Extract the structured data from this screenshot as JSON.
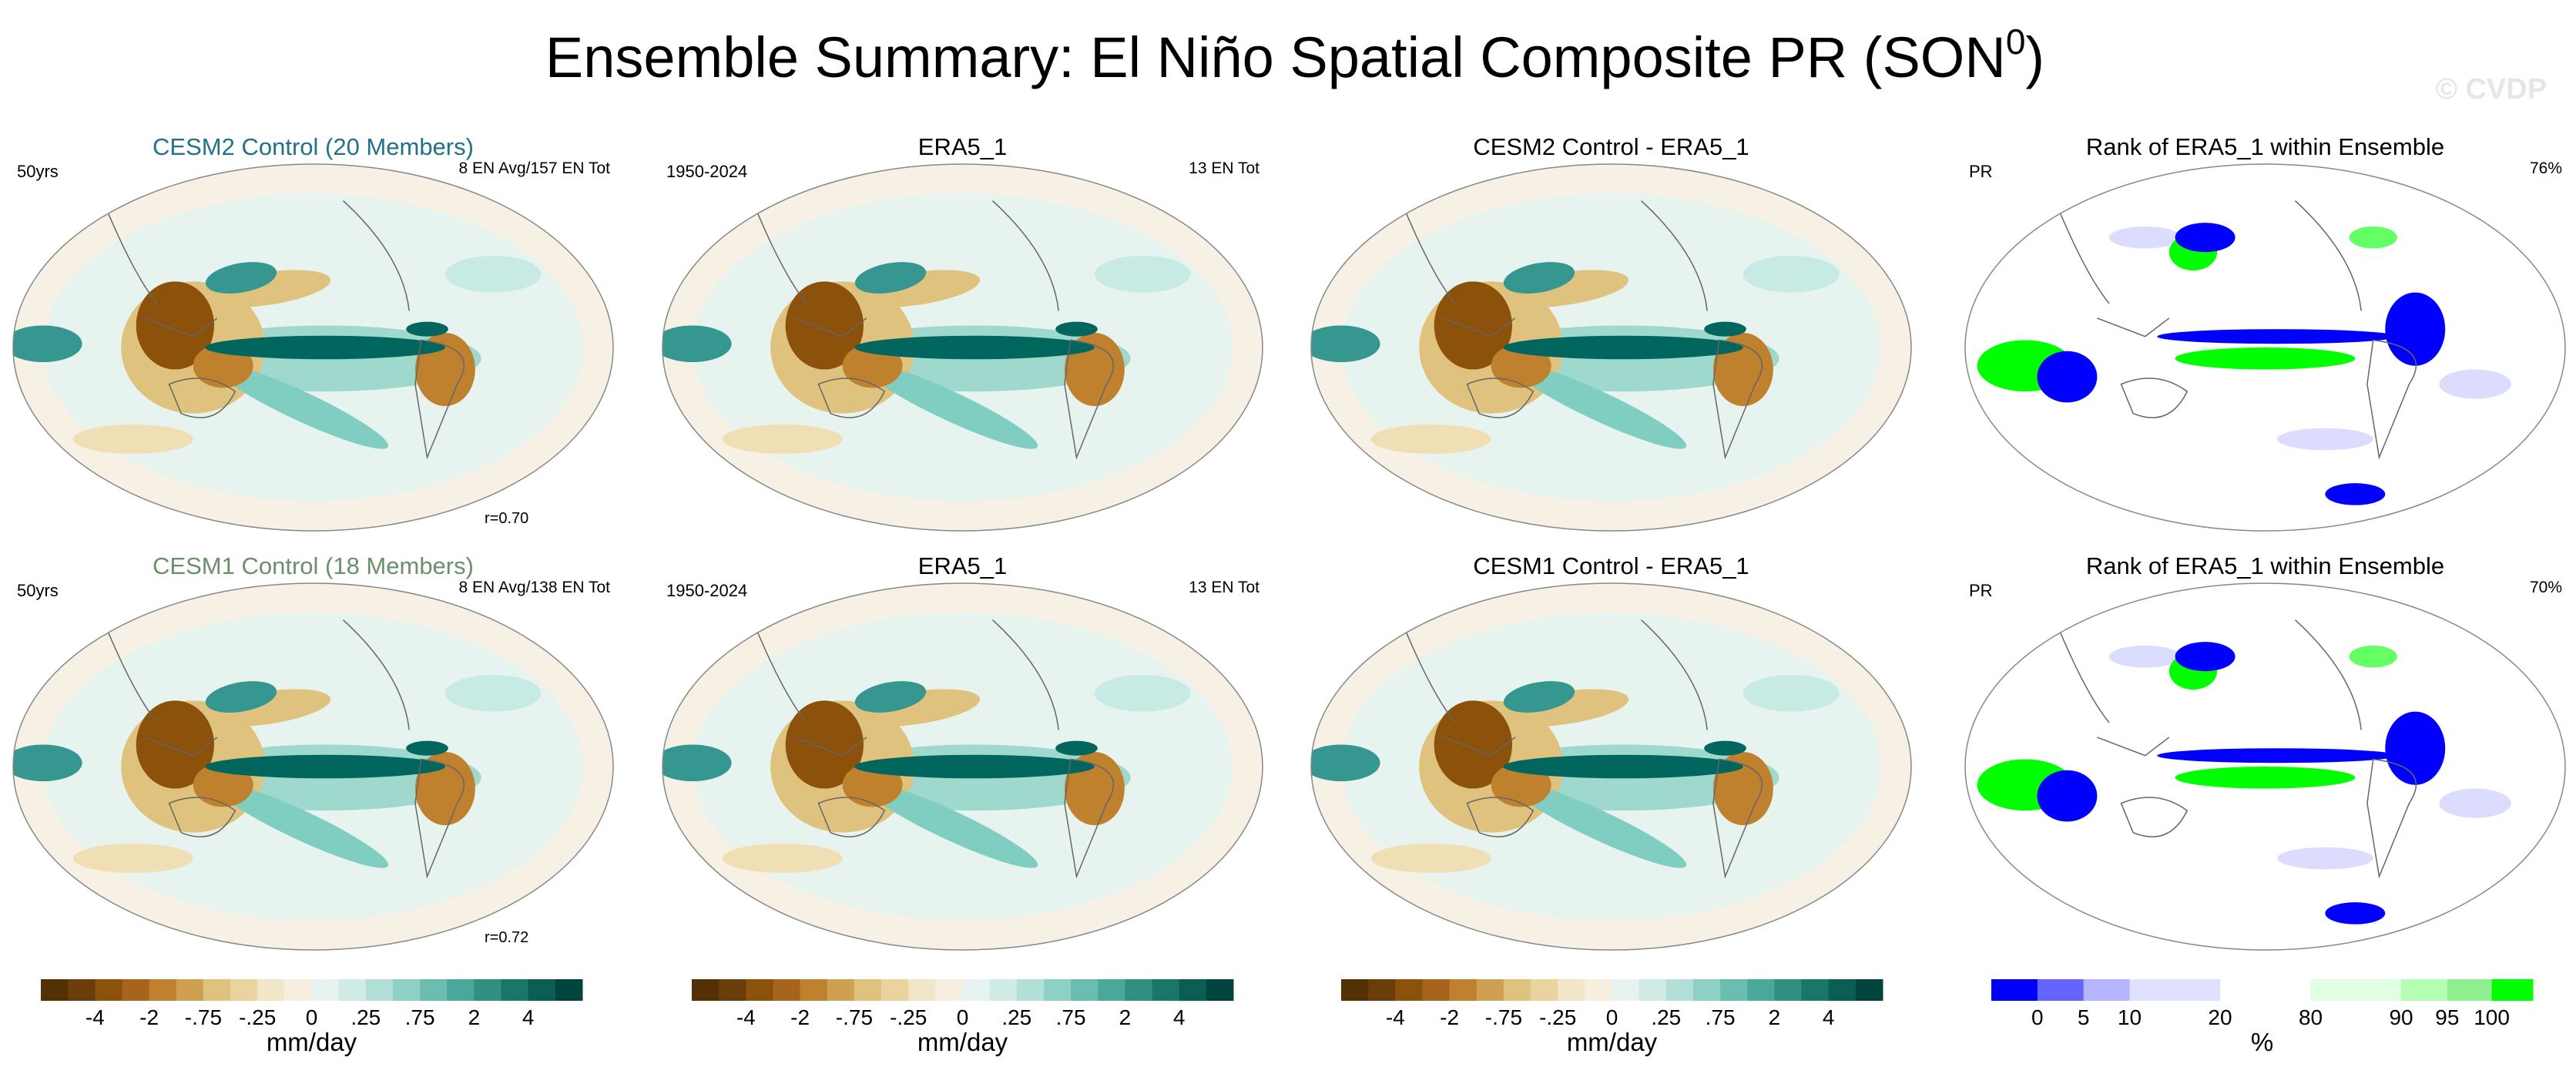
{
  "title": {
    "text": "Ensemble Summary: El Niño Spatial Composite PR (SON",
    "superscript": "0",
    "close": ")"
  },
  "watermark": "© CVDP",
  "panels": [
    {
      "type": "anomaly",
      "title": "CESM2 Control (20 Members)",
      "title_color": "#21708c",
      "left": "50yrs",
      "right": "8 EN Avg/157 EN Tot",
      "bottom": "r=0.70"
    },
    {
      "type": "anomaly",
      "title": "ERA5_1",
      "left": "1950-2024",
      "right": "13 EN Tot"
    },
    {
      "type": "anomaly",
      "title": "CESM2 Control - ERA5_1"
    },
    {
      "type": "rank",
      "title": "Rank of ERA5_1 within Ensemble",
      "left": "PR",
      "right": "76%"
    },
    {
      "type": "anomaly",
      "title": "CESM1 Control (18 Members)",
      "title_color": "#6b8f6b",
      "left": "50yrs",
      "right": "8 EN Avg/138 EN Tot",
      "bottom": "r=0.72"
    },
    {
      "type": "anomaly",
      "title": "ERA5_1",
      "left": "1950-2024",
      "right": "13 EN Tot"
    },
    {
      "type": "anomaly",
      "title": "CESM1 Control - ERA5_1"
    },
    {
      "type": "rank",
      "title": "Rank of ERA5_1 within Ensemble",
      "left": "PR",
      "right": "70%"
    }
  ],
  "colorbars": [
    {
      "labels": [
        "-4",
        "-2",
        "-.75",
        "-.25",
        "0",
        ".25",
        ".75",
        "2",
        "4"
      ],
      "unit": "mm/day"
    },
    {
      "labels": [
        "-4",
        "-2",
        "-.75",
        "-.25",
        "0",
        ".25",
        ".75",
        "2",
        "4"
      ],
      "unit": "mm/day"
    },
    {
      "labels": [
        "-4",
        "-2",
        "-.75",
        "-.25",
        "0",
        ".25",
        ".75",
        "2",
        "4"
      ],
      "unit": "mm/day"
    },
    {
      "labels": [
        "0",
        "5",
        "10",
        "20",
        "80",
        "90",
        "95",
        "100"
      ],
      "unit": "%"
    }
  ]
}
